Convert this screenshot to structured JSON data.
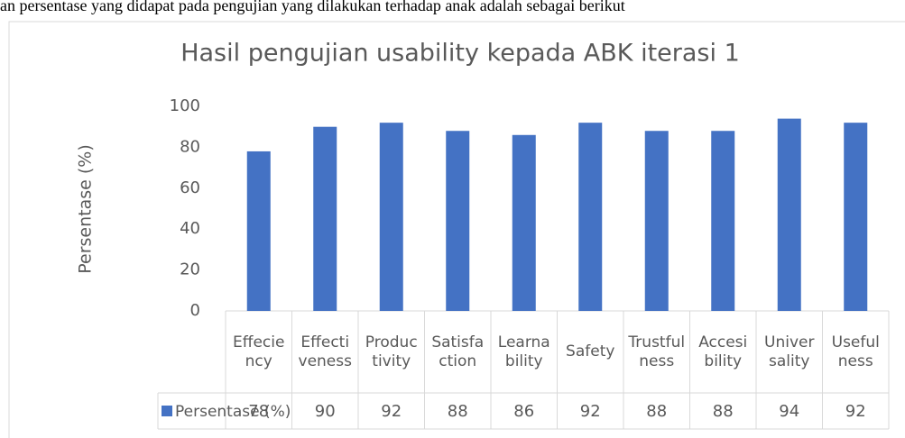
{
  "context_text": "an persentase yang didapat pada pengujian yang dilakukan terhadap anak adalah sebagai berikut",
  "chart_data": {
    "type": "bar",
    "title": "Hasil pengujian usability kepada ABK iterasi 1",
    "ylabel": "Persentase (%)",
    "categories": [
      "Effeciency",
      "Effectiveness",
      "Productivity",
      "Satisfaction",
      "Learnability",
      "Safety",
      "Trustfulness",
      "Accesibility",
      "Universality",
      "Usefulness"
    ],
    "series": [
      {
        "name": "Persentase (%)",
        "color": "#4472c4",
        "values": [
          78,
          90,
          92,
          88,
          86,
          92,
          88,
          88,
          94,
          92
        ]
      }
    ],
    "ylim": [
      0,
      100
    ],
    "yticks": [
      0,
      20,
      40,
      60,
      80,
      100
    ],
    "grid": false,
    "data_table": true
  }
}
